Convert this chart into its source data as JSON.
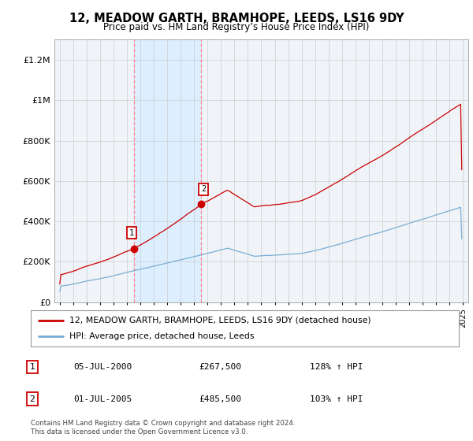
{
  "title": "12, MEADOW GARTH, BRAMHOPE, LEEDS, LS16 9DY",
  "subtitle": "Price paid vs. HM Land Registry’s House Price Index (HPI)",
  "sale1_date": "05-JUL-2000",
  "sale1_price": 267500,
  "sale1_label": "£267,500",
  "sale1_pct": "128% ↑ HPI",
  "sale1_year": 2000.5,
  "sale2_date": "01-JUL-2005",
  "sale2_price": 485500,
  "sale2_label": "£485,500",
  "sale2_pct": "103% ↑ HPI",
  "sale2_year": 2005.5,
  "legend_line1": "12, MEADOW GARTH, BRAMHOPE, LEEDS, LS16 9DY (detached house)",
  "legend_line2": "HPI: Average price, detached house, Leeds",
  "footer": "Contains HM Land Registry data © Crown copyright and database right 2024.\nThis data is licensed under the Open Government Licence v3.0.",
  "red_color": "#cc0000",
  "blue_color": "#7aadd4",
  "shade_color": "#ddeeff",
  "dashed_color": "#ff8888",
  "background_color": "#ffffff",
  "chart_bg": "#f0f4f8",
  "grid_color": "#cccccc",
  "ylim": [
    0,
    1300000
  ],
  "xlim_start": 1994.6,
  "xlim_end": 2025.4,
  "yticks": [
    0,
    200000,
    400000,
    600000,
    800000,
    1000000,
    1200000
  ],
  "ylabels": [
    "£0",
    "£200K",
    "£400K",
    "£600K",
    "£800K",
    "£1M",
    "£1.2M"
  ]
}
